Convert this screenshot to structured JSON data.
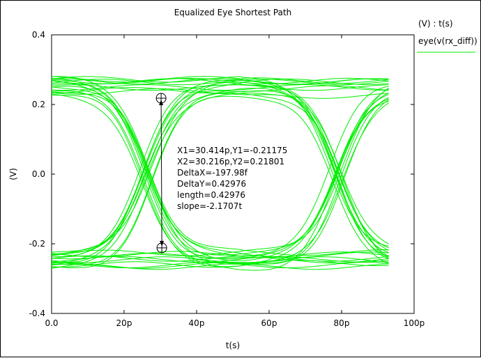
{
  "chart_data": {
    "type": "line",
    "title": "Equalized Eye Shortest Path",
    "xlabel": "t(s)",
    "ylabel": "(V)",
    "legend_header": "(V) : t(s)",
    "xlim": [
      0,
      100
    ],
    "ylim": [
      -0.4,
      0.4
    ],
    "x_ticks": [
      {
        "value": 0,
        "label": "0.0"
      },
      {
        "value": 20,
        "label": "20p"
      },
      {
        "value": 40,
        "label": "40p"
      },
      {
        "value": 60,
        "label": "60p"
      },
      {
        "value": 80,
        "label": "80p"
      },
      {
        "value": 100,
        "label": "100p"
      }
    ],
    "y_ticks": [
      {
        "value": 0.4,
        "label": "0.4"
      },
      {
        "value": 0.2,
        "label": "0.2"
      },
      {
        "value": 0.0,
        "label": "0.0"
      },
      {
        "value": -0.2,
        "label": "-0.2"
      },
      {
        "value": -0.4,
        "label": "-0.4"
      }
    ],
    "grid": false,
    "legend_position": "right",
    "series": [
      {
        "name": "eye(v(rx_diff))",
        "color": "#00ee00",
        "trace_count": 40,
        "t_end": 93.5,
        "crossings": [
          26,
          79
        ],
        "high_level": 0.25,
        "low_level": -0.25
      }
    ],
    "annotation": {
      "marker1": {
        "x": 30.414,
        "y": -0.21175
      },
      "marker2": {
        "x": 30.216,
        "y": 0.21801
      },
      "lines": [
        "X1=30.414p,Y1=-0.21175",
        "X2=30.216p,Y2=0.21801",
        "DeltaX=-197.98f",
        "DeltaY=0.42976",
        "length=0.42976",
        "slope=-2.1707t"
      ]
    }
  }
}
